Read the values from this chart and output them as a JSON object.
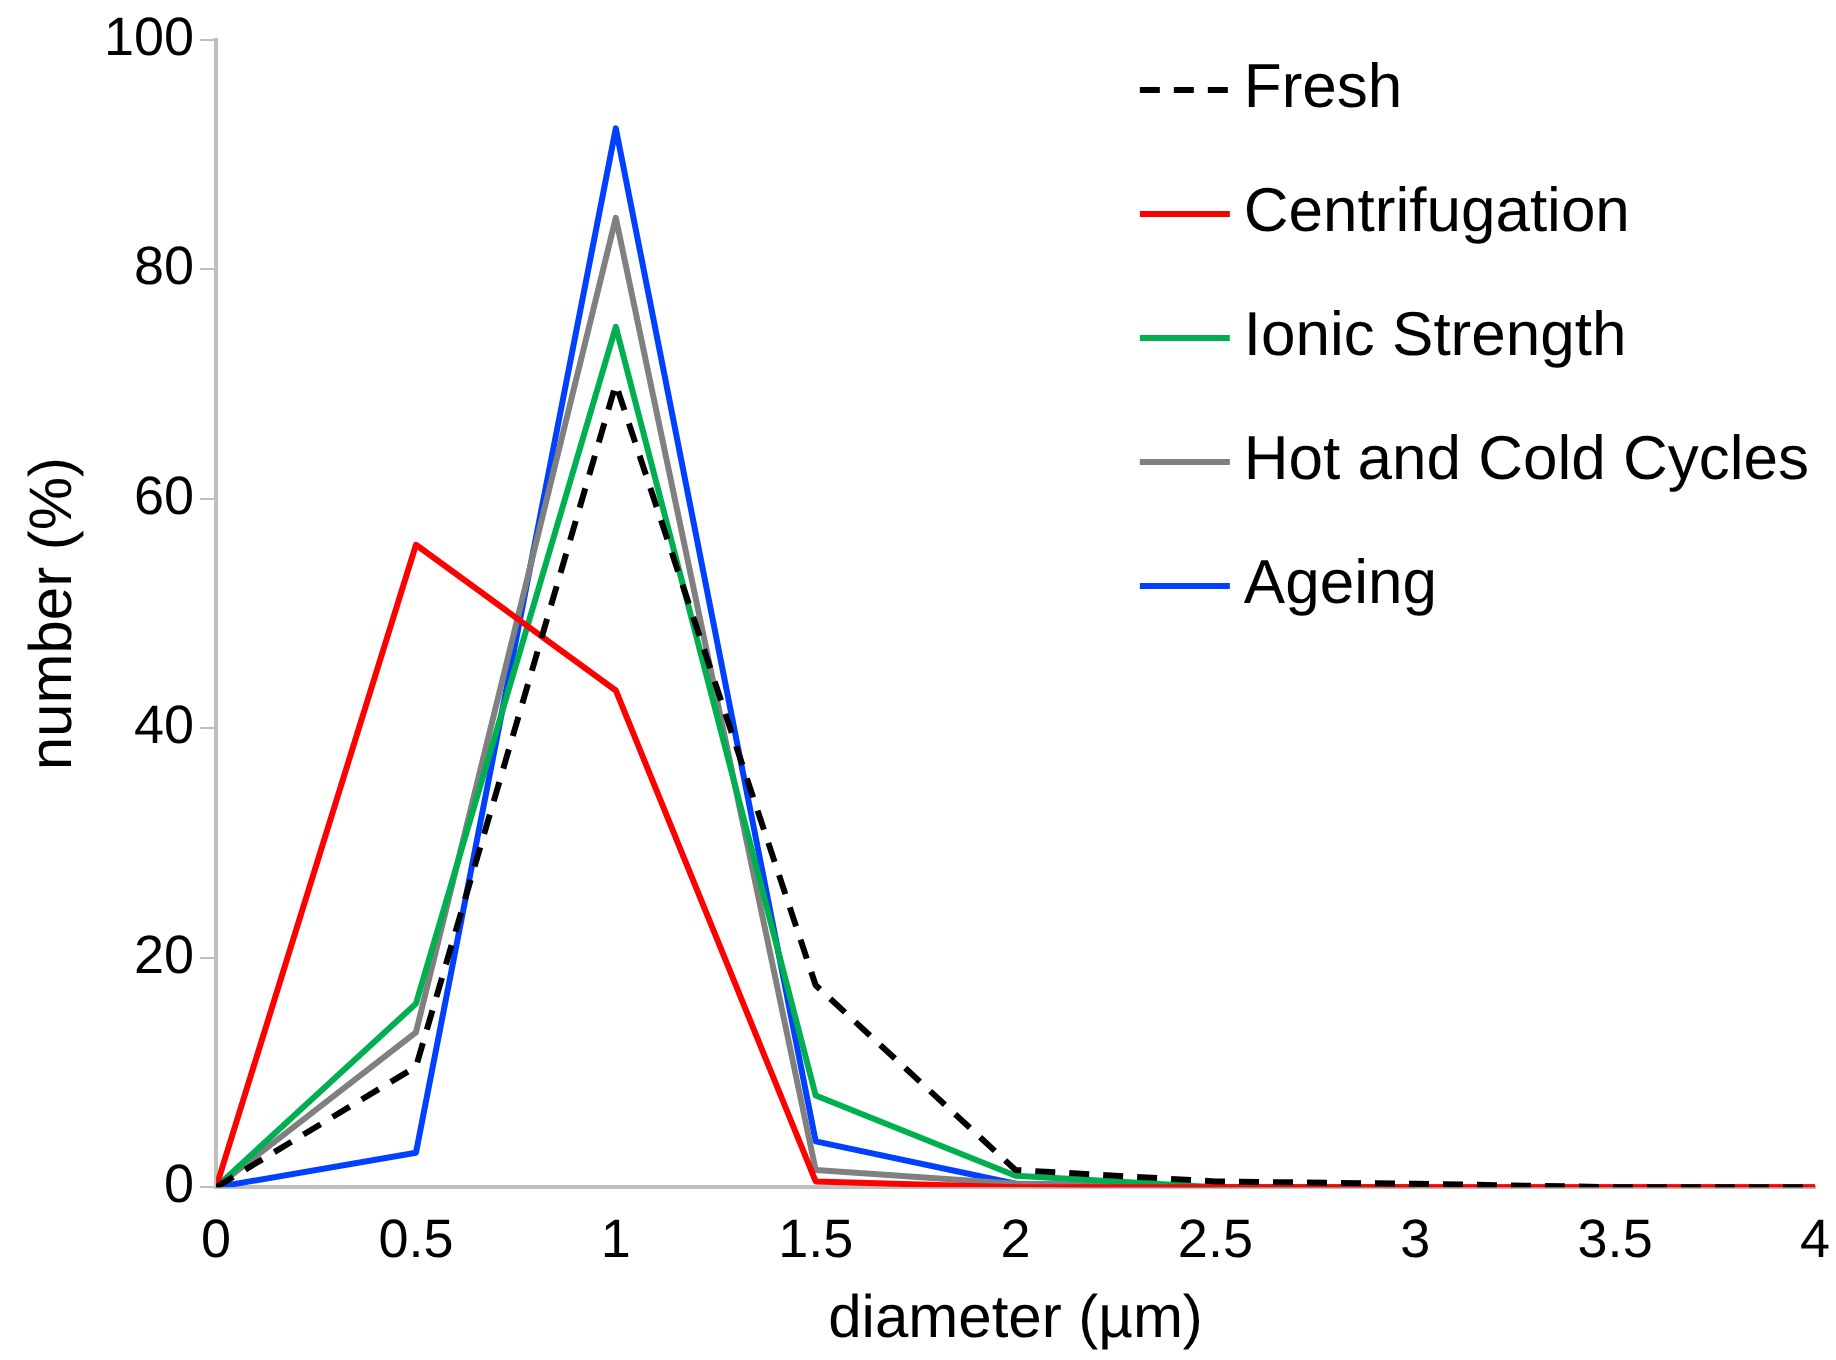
{
  "chart_data": {
    "type": "line",
    "xlabel": "diameter (µm)",
    "ylabel": "number (%)",
    "x": [
      0,
      0.5,
      1,
      1.5,
      2,
      2.5,
      3,
      3.5,
      4
    ],
    "xlim": [
      0,
      4
    ],
    "xticks": [
      0,
      0.5,
      1,
      1.5,
      2,
      2.5,
      3,
      3.5,
      4
    ],
    "ylim": [
      0,
      100
    ],
    "yticks": [
      0,
      20,
      40,
      60,
      80,
      100
    ],
    "legend": "top right",
    "marker": "none",
    "series": [
      {
        "name": "Fresh",
        "color": "#000000",
        "line_style": "dashed",
        "values": [
          0,
          10.5,
          70,
          17.6,
          1.5,
          0.5,
          0.3,
          0,
          0
        ]
      },
      {
        "name": "Centrifugation",
        "color": "#ff0000",
        "line_style": "solid",
        "values": [
          0,
          56,
          43.3,
          0.5,
          0,
          0,
          0,
          0,
          0
        ]
      },
      {
        "name": "Ionic Strength",
        "color": "#00b050",
        "line_style": "solid",
        "values": [
          0,
          16,
          75,
          8,
          1,
          0,
          0,
          null,
          null
        ]
      },
      {
        "name": "Hot and Cold Cycles",
        "color": "#808080",
        "line_style": "solid",
        "values": [
          0,
          13.5,
          84.5,
          1.5,
          0.3,
          0,
          0,
          0,
          0
        ]
      },
      {
        "name": "Ageing",
        "color": "#0040ff",
        "line_style": "solid",
        "values": [
          0,
          3,
          92.3,
          4,
          0.3,
          0,
          null,
          null,
          null
        ]
      }
    ]
  }
}
